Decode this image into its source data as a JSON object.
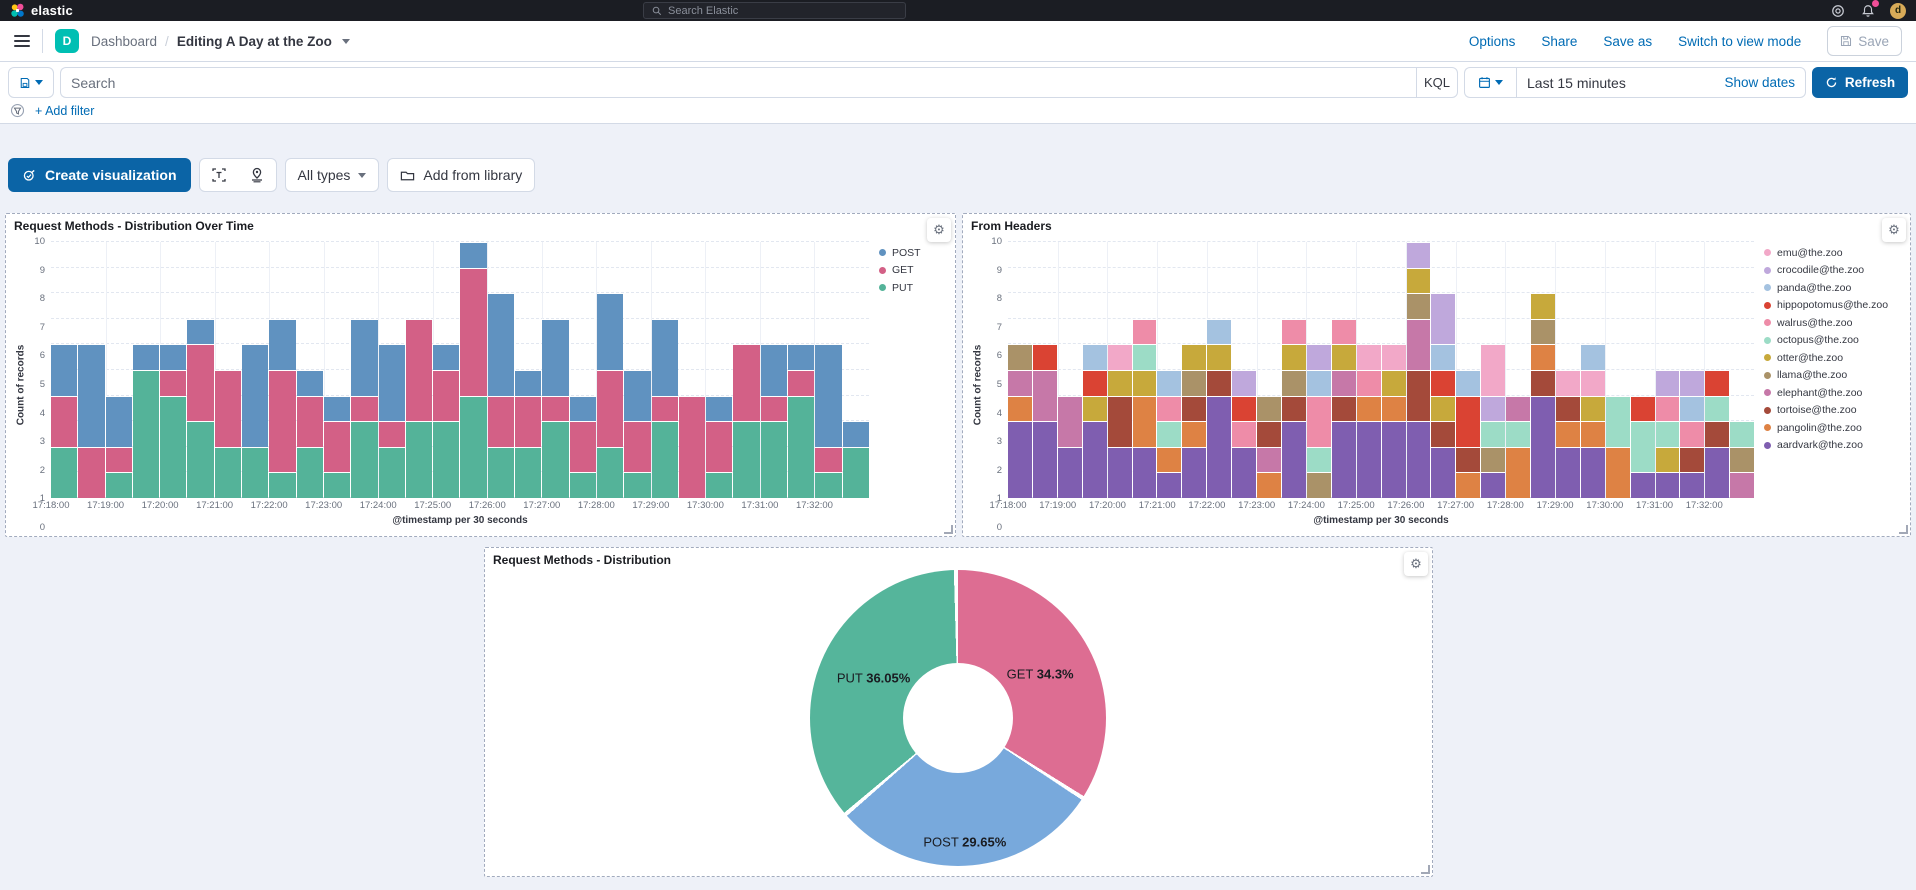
{
  "top_nav": {
    "brand": "elastic",
    "search_placeholder": "Search Elastic",
    "user_initial": "d"
  },
  "nav_bar": {
    "space_initial": "D",
    "breadcrumb_root": "Dashboard",
    "breadcrumb_current": "Editing A Day at the Zoo",
    "actions": [
      "Options",
      "Share",
      "Save as",
      "Switch to view mode"
    ],
    "save_label": "Save"
  },
  "query_bar": {
    "search_placeholder": "Search",
    "kql_label": "KQL",
    "time_range": "Last 15 minutes",
    "show_dates_label": "Show dates",
    "refresh_label": "Refresh",
    "add_filter_label": "+ Add filter"
  },
  "toolbar": {
    "create_viz_label": "Create visualization",
    "all_types_label": "All types",
    "add_from_library_label": "Add from library"
  },
  "chart_data": [
    {
      "type": "bar",
      "stacked": true,
      "panel_title": "Request Methods - Distribution Over Time",
      "ylabel": "Count of records",
      "xlabel": "@timestamp per 30 seconds",
      "ylim": [
        0,
        10
      ],
      "interval_seconds": 30,
      "x_tick_labels": [
        "17:18:00",
        "17:19:00",
        "17:20:00",
        "17:21:00",
        "17:22:00",
        "17:23:00",
        "17:24:00",
        "17:25:00",
        "17:26:00",
        "17:27:00",
        "17:28:00",
        "17:29:00",
        "17:30:00",
        "17:31:00",
        "17:32:00"
      ],
      "legend_position": "right",
      "stack_order": [
        "PUT",
        "GET",
        "POST"
      ],
      "series": [
        {
          "name": "POST",
          "color": "#6092c0",
          "values": [
            2,
            4,
            2,
            1,
            1,
            1,
            0,
            4,
            2,
            1,
            1,
            3,
            3,
            0,
            1,
            1,
            4,
            1,
            3,
            1,
            3,
            2,
            3,
            0,
            1,
            0,
            2,
            1,
            4,
            1
          ]
        },
        {
          "name": "GET",
          "color": "#d36086",
          "values": [
            2,
            2,
            1,
            0,
            1,
            3,
            3,
            0,
            4,
            2,
            2,
            1,
            1,
            4,
            2,
            5,
            2,
            2,
            1,
            2,
            3,
            2,
            1,
            4,
            2,
            3,
            1,
            1,
            1,
            0
          ]
        },
        {
          "name": "PUT",
          "color": "#54b399",
          "values": [
            2,
            0,
            1,
            5,
            4,
            3,
            2,
            2,
            1,
            2,
            1,
            3,
            2,
            3,
            3,
            4,
            2,
            2,
            3,
            1,
            2,
            1,
            3,
            0,
            1,
            3,
            3,
            4,
            1,
            2
          ]
        }
      ]
    },
    {
      "type": "bar",
      "stacked": true,
      "panel_title": "From Headers",
      "ylabel": "Count of records",
      "xlabel": "@timestamp per 30 seconds",
      "ylim": [
        0,
        10
      ],
      "interval_seconds": 30,
      "x_tick_labels": [
        "17:18:00",
        "17:19:00",
        "17:20:00",
        "17:21:00",
        "17:22:00",
        "17:23:00",
        "17:24:00",
        "17:25:00",
        "17:26:00",
        "17:27:00",
        "17:28:00",
        "17:29:00",
        "17:30:00",
        "17:31:00",
        "17:32:00"
      ],
      "legend_position": "right",
      "legend": [
        "emu@the.zoo",
        "crocodile@the.zoo",
        "panda@the.zoo",
        "hippopotomus@the.zoo",
        "walrus@the.zoo",
        "octopus@the.zoo",
        "otter@the.zoo",
        "llama@the.zoo",
        "elephant@the.zoo",
        "tortoise@the.zoo",
        "pangolin@the.zoo",
        "aardvark@the.zoo"
      ],
      "colors": {
        "emu@the.zoo": "#f2a8c8",
        "crocodile@the.zoo": "#bfa8dc",
        "panda@the.zoo": "#a4c2e0",
        "hippopotomus@the.zoo": "#da4333",
        "walrus@the.zoo": "#ee8ca8",
        "octopus@the.zoo": "#9cdcc6",
        "otter@the.zoo": "#c7a93b",
        "llama@the.zoo": "#aa9268",
        "elephant@the.zoo": "#c678a8",
        "tortoise@the.zoo": "#a44a3a",
        "pangolin@the.zoo": "#de8244",
        "aardvark@the.zoo": "#7f5eb0"
      },
      "bars": [
        [
          [
            "aardvark@the.zoo",
            3
          ],
          [
            "pangolin@the.zoo",
            1
          ],
          [
            "elephant@the.zoo",
            1
          ],
          [
            "llama@the.zoo",
            1
          ]
        ],
        [
          [
            "aardvark@the.zoo",
            3
          ],
          [
            "elephant@the.zoo",
            2
          ],
          [
            "hippopotomus@the.zoo",
            1
          ]
        ],
        [
          [
            "aardvark@the.zoo",
            2
          ],
          [
            "elephant@the.zoo",
            2
          ]
        ],
        [
          [
            "aardvark@the.zoo",
            3
          ],
          [
            "otter@the.zoo",
            1
          ],
          [
            "hippopotomus@the.zoo",
            1
          ],
          [
            "panda@the.zoo",
            1
          ]
        ],
        [
          [
            "aardvark@the.zoo",
            2
          ],
          [
            "tortoise@the.zoo",
            2
          ],
          [
            "otter@the.zoo",
            1
          ],
          [
            "emu@the.zoo",
            1
          ]
        ],
        [
          [
            "aardvark@the.zoo",
            2
          ],
          [
            "pangolin@the.zoo",
            2
          ],
          [
            "otter@the.zoo",
            1
          ],
          [
            "octopus@the.zoo",
            1
          ],
          [
            "walrus@the.zoo",
            1
          ]
        ],
        [
          [
            "aardvark@the.zoo",
            1
          ],
          [
            "pangolin@the.zoo",
            1
          ],
          [
            "octopus@the.zoo",
            1
          ],
          [
            "walrus@the.zoo",
            1
          ],
          [
            "panda@the.zoo",
            1
          ]
        ],
        [
          [
            "aardvark@the.zoo",
            2
          ],
          [
            "pangolin@the.zoo",
            1
          ],
          [
            "tortoise@the.zoo",
            1
          ],
          [
            "llama@the.zoo",
            1
          ],
          [
            "otter@the.zoo",
            1
          ]
        ],
        [
          [
            "aardvark@the.zoo",
            4
          ],
          [
            "tortoise@the.zoo",
            1
          ],
          [
            "otter@the.zoo",
            1
          ],
          [
            "panda@the.zoo",
            1
          ]
        ],
        [
          [
            "aardvark@the.zoo",
            2
          ],
          [
            "walrus@the.zoo",
            1
          ],
          [
            "hippopotomus@the.zoo",
            1
          ],
          [
            "crocodile@the.zoo",
            1
          ]
        ],
        [
          [
            "pangolin@the.zoo",
            1
          ],
          [
            "elephant@the.zoo",
            1
          ],
          [
            "tortoise@the.zoo",
            1
          ],
          [
            "llama@the.zoo",
            1
          ]
        ],
        [
          [
            "aardvark@the.zoo",
            3
          ],
          [
            "tortoise@the.zoo",
            1
          ],
          [
            "llama@the.zoo",
            1
          ],
          [
            "otter@the.zoo",
            1
          ],
          [
            "walrus@the.zoo",
            1
          ]
        ],
        [
          [
            "llama@the.zoo",
            1
          ],
          [
            "octopus@the.zoo",
            1
          ],
          [
            "walrus@the.zoo",
            2
          ],
          [
            "panda@the.zoo",
            1
          ],
          [
            "crocodile@the.zoo",
            1
          ]
        ],
        [
          [
            "aardvark@the.zoo",
            3
          ],
          [
            "tortoise@the.zoo",
            1
          ],
          [
            "elephant@the.zoo",
            1
          ],
          [
            "otter@the.zoo",
            1
          ],
          [
            "walrus@the.zoo",
            1
          ]
        ],
        [
          [
            "aardvark@the.zoo",
            3
          ],
          [
            "pangolin@the.zoo",
            1
          ],
          [
            "walrus@the.zoo",
            1
          ],
          [
            "emu@the.zoo",
            1
          ]
        ],
        [
          [
            "aardvark@the.zoo",
            3
          ],
          [
            "pangolin@the.zoo",
            1
          ],
          [
            "otter@the.zoo",
            1
          ],
          [
            "emu@the.zoo",
            1
          ]
        ],
        [
          [
            "aardvark@the.zoo",
            3
          ],
          [
            "tortoise@the.zoo",
            2
          ],
          [
            "elephant@the.zoo",
            2
          ],
          [
            "llama@the.zoo",
            1
          ],
          [
            "otter@the.zoo",
            1
          ],
          [
            "crocodile@the.zoo",
            1
          ]
        ],
        [
          [
            "aardvark@the.zoo",
            2
          ],
          [
            "tortoise@the.zoo",
            1
          ],
          [
            "otter@the.zoo",
            1
          ],
          [
            "hippopotomus@the.zoo",
            1
          ],
          [
            "panda@the.zoo",
            1
          ],
          [
            "crocodile@the.zoo",
            2
          ]
        ],
        [
          [
            "pangolin@the.zoo",
            1
          ],
          [
            "tortoise@the.zoo",
            1
          ],
          [
            "hippopotomus@the.zoo",
            2
          ],
          [
            "panda@the.zoo",
            1
          ]
        ],
        [
          [
            "aardvark@the.zoo",
            1
          ],
          [
            "llama@the.zoo",
            1
          ],
          [
            "octopus@the.zoo",
            1
          ],
          [
            "crocodile@the.zoo",
            1
          ],
          [
            "emu@the.zoo",
            2
          ]
        ],
        [
          [
            "pangolin@the.zoo",
            2
          ],
          [
            "octopus@the.zoo",
            1
          ],
          [
            "elephant@the.zoo",
            1
          ]
        ],
        [
          [
            "aardvark@the.zoo",
            4
          ],
          [
            "tortoise@the.zoo",
            1
          ],
          [
            "pangolin@the.zoo",
            1
          ],
          [
            "llama@the.zoo",
            1
          ],
          [
            "otter@the.zoo",
            1
          ]
        ],
        [
          [
            "aardvark@the.zoo",
            2
          ],
          [
            "pangolin@the.zoo",
            1
          ],
          [
            "tortoise@the.zoo",
            1
          ],
          [
            "emu@the.zoo",
            1
          ]
        ],
        [
          [
            "aardvark@the.zoo",
            2
          ],
          [
            "pangolin@the.zoo",
            1
          ],
          [
            "otter@the.zoo",
            1
          ],
          [
            "emu@the.zoo",
            1
          ],
          [
            "panda@the.zoo",
            1
          ]
        ],
        [
          [
            "pangolin@the.zoo",
            2
          ],
          [
            "octopus@the.zoo",
            2
          ]
        ],
        [
          [
            "aardvark@the.zoo",
            1
          ],
          [
            "octopus@the.zoo",
            2
          ],
          [
            "hippopotomus@the.zoo",
            1
          ]
        ],
        [
          [
            "aardvark@the.zoo",
            1
          ],
          [
            "otter@the.zoo",
            1
          ],
          [
            "octopus@the.zoo",
            1
          ],
          [
            "walrus@the.zoo",
            1
          ],
          [
            "crocodile@the.zoo",
            1
          ]
        ],
        [
          [
            "aardvark@the.zoo",
            1
          ],
          [
            "tortoise@the.zoo",
            1
          ],
          [
            "walrus@the.zoo",
            1
          ],
          [
            "panda@the.zoo",
            1
          ],
          [
            "crocodile@the.zoo",
            1
          ]
        ],
        [
          [
            "aardvark@the.zoo",
            2
          ],
          [
            "tortoise@the.zoo",
            1
          ],
          [
            "octopus@the.zoo",
            1
          ],
          [
            "hippopotomus@the.zoo",
            1
          ]
        ],
        [
          [
            "elephant@the.zoo",
            1
          ],
          [
            "llama@the.zoo",
            1
          ],
          [
            "octopus@the.zoo",
            1
          ]
        ]
      ]
    },
    {
      "type": "pie",
      "panel_title": "Request Methods - Distribution",
      "donut": true,
      "slices": [
        {
          "name": "GET",
          "value": 34.3,
          "color": "#dd6d92"
        },
        {
          "name": "POST",
          "value": 29.65,
          "color": "#78a9dc"
        },
        {
          "name": "PUT",
          "value": 36.05,
          "color": "#55b59b"
        }
      ]
    }
  ]
}
